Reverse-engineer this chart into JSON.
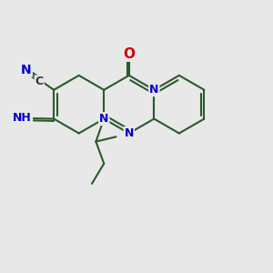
{
  "background_color": "#e8e8e8",
  "bond_color": "#2a5a2a",
  "N_color": "#0000cc",
  "O_color": "#cc0000",
  "C_color": "#333333",
  "H_color": "#2a5a2a",
  "figsize": [
    3.0,
    3.0
  ],
  "dpi": 100,
  "xlim": [
    0,
    10
  ],
  "ylim": [
    0,
    10
  ]
}
